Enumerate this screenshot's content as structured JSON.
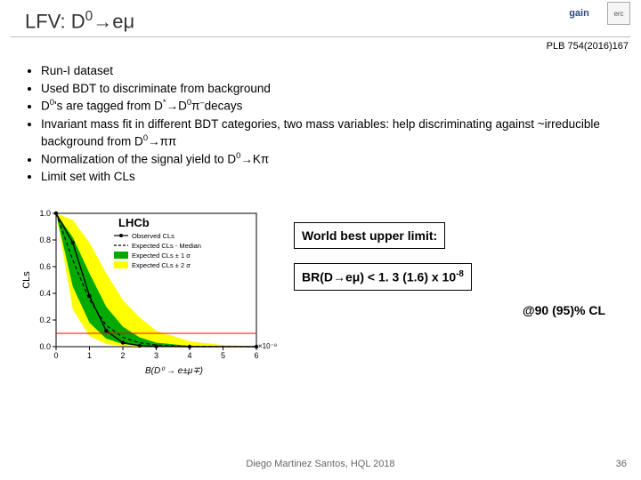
{
  "title": {
    "prefix": "LFV: D",
    "sup": "0",
    "arrow": "→",
    "suffix": "eμ"
  },
  "logos": {
    "gain": "gain",
    "erc": "erc"
  },
  "citation": "PLB 754(2016)167",
  "bullets": [
    {
      "pre": "Run-I dataset"
    },
    {
      "pre": "Used BDT to discriminate from background"
    },
    {
      "pre": "D",
      "sup1": "0",
      "mid": "'s are tagged from D",
      "sup2": "*",
      "arrow": "→D",
      "sup3": "0",
      "tail": "π",
      "sup4": "–",
      "end": "decays"
    },
    {
      "pre": "Invariant mass fit in different BDT categories, two mass variables: help discriminating against ~irreducible background from D",
      "sup1": "0",
      "arrow": "→ππ"
    },
    {
      "pre": "Normalization of the signal yield to D",
      "sup1": "0",
      "arrow": "→Kπ"
    },
    {
      "pre": "Limit set with CLs"
    }
  ],
  "chart": {
    "label_lhcb": "LHCb",
    "legend": [
      "Observed CLs",
      "Expected CLs - Median",
      "Expected CLs ± 1 σ",
      "Expected CLs ± 2 σ"
    ],
    "ylabel": "CLs",
    "xlabel": "B(D⁰ → e±μ∓)",
    "x_exp": "×10⁻⁸",
    "yticks": [
      "0.0",
      "0.2",
      "0.4",
      "0.6",
      "0.8",
      "1.0"
    ],
    "xticks": [
      "0",
      "1",
      "2",
      "3",
      "4",
      "5",
      "6"
    ],
    "colors": {
      "band2": "#ffff00",
      "band1": "#00aa00",
      "median": "#000000",
      "observed": "#000000",
      "cl_line": "#ff0000",
      "bg": "#ffffff"
    },
    "cl_y": 0.1,
    "observed": [
      [
        0,
        1.0
      ],
      [
        0.5,
        0.78
      ],
      [
        1.0,
        0.38
      ],
      [
        1.5,
        0.12
      ],
      [
        2.0,
        0.03
      ],
      [
        2.5,
        0.007
      ],
      [
        3.0,
        0.002
      ],
      [
        4.0,
        0.0
      ],
      [
        6.0,
        0.0
      ]
    ],
    "median": [
      [
        0,
        1.0
      ],
      [
        0.5,
        0.65
      ],
      [
        1.0,
        0.35
      ],
      [
        1.5,
        0.16
      ],
      [
        2.0,
        0.07
      ],
      [
        2.5,
        0.03
      ],
      [
        3.0,
        0.012
      ],
      [
        4.0,
        0.002
      ],
      [
        6.0,
        0.0
      ]
    ],
    "band1_hi": [
      [
        0,
        1.0
      ],
      [
        0.5,
        0.82
      ],
      [
        1.0,
        0.55
      ],
      [
        1.5,
        0.3
      ],
      [
        2.0,
        0.15
      ],
      [
        2.5,
        0.07
      ],
      [
        3.0,
        0.03
      ],
      [
        4.0,
        0.006
      ],
      [
        5.0,
        0.001
      ],
      [
        6.0,
        0.0
      ]
    ],
    "band1_lo": [
      [
        0,
        1.0
      ],
      [
        0.5,
        0.45
      ],
      [
        1.0,
        0.18
      ],
      [
        1.5,
        0.06
      ],
      [
        2.0,
        0.02
      ],
      [
        2.5,
        0.006
      ],
      [
        3.0,
        0.002
      ],
      [
        4.0,
        0.0
      ],
      [
        6.0,
        0.0
      ]
    ],
    "band2_hi": [
      [
        0,
        1.0
      ],
      [
        0.5,
        0.95
      ],
      [
        1.0,
        0.78
      ],
      [
        1.5,
        0.55
      ],
      [
        2.0,
        0.35
      ],
      [
        2.5,
        0.22
      ],
      [
        3.0,
        0.12
      ],
      [
        4.0,
        0.04
      ],
      [
        5.0,
        0.012
      ],
      [
        6.0,
        0.003
      ]
    ],
    "band2_lo": [
      [
        0,
        1.0
      ],
      [
        0.5,
        0.28
      ],
      [
        1.0,
        0.08
      ],
      [
        1.5,
        0.02
      ],
      [
        2.0,
        0.005
      ],
      [
        2.5,
        0.001
      ],
      [
        3.0,
        0.0
      ],
      [
        6.0,
        0.0
      ]
    ]
  },
  "results": {
    "line1": "World best upper limit:",
    "line2_pre": "BR(D",
    "line2_arrow": "→eμ) < 1. 3 (1.6) x 10",
    "line2_exp": "-8",
    "cl_line": "@90 (95)% CL"
  },
  "footer": "Diego Martinez Santos, HQL 2018",
  "pagenum": "36"
}
